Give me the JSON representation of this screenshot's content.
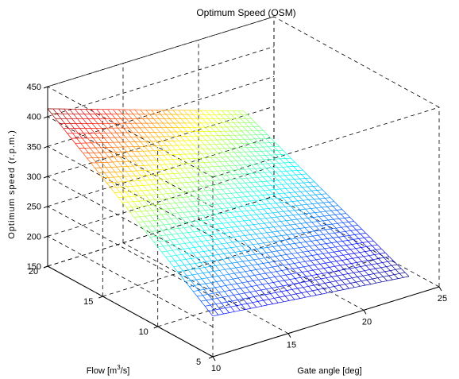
{
  "chart_data": {
    "type": "surface",
    "title": "Optimum Speed (OSM)",
    "xlabel": "Gate angle [deg]",
    "ylabel_parts": [
      "Flow [m",
      "3",
      "/s]"
    ],
    "zlabel": "Optimum speed (r.p.m.)",
    "xlim": [
      10,
      25
    ],
    "ylim": [
      5,
      20
    ],
    "zlim": [
      150,
      450
    ],
    "xticks": [
      10,
      15,
      20,
      25
    ],
    "yticks": [
      5,
      10,
      15,
      20
    ],
    "zticks": [
      150,
      200,
      250,
      300,
      350,
      400,
      450
    ],
    "colormap": "jet",
    "grid": true,
    "surface": {
      "x_range": [
        10,
        23
      ],
      "y_range": [
        5,
        20
      ],
      "corners": {
        "x10_y5": 218,
        "x10_y20": 413,
        "x23_y20": 308,
        "x23_y5": 183
      },
      "note_values": "optimum speed (r.p.m.) at surface corners"
    }
  }
}
